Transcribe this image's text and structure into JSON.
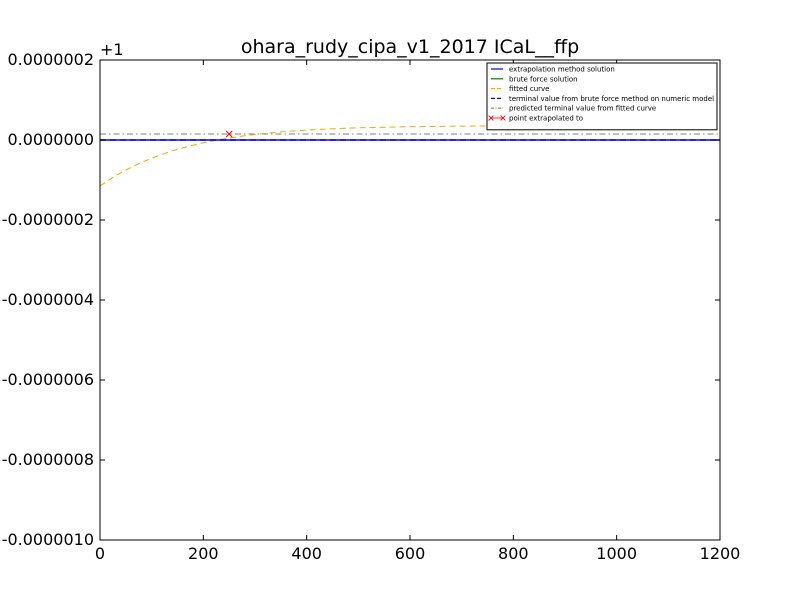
{
  "chart_data": {
    "type": "line",
    "title": "ohara_rudy_cipa_v1_2017 ICaL__ffp",
    "xlabel": "",
    "ylabel": "",
    "y_offset_label": "+1",
    "xlim": [
      0,
      1200
    ],
    "ylim": [
      -1e-06,
      2e-07
    ],
    "x_ticks": [
      0,
      200,
      400,
      600,
      800,
      1000,
      1200
    ],
    "x_tick_labels": [
      "0",
      "200",
      "400",
      "600",
      "800",
      "1000",
      "1200"
    ],
    "y_ticks": [
      2e-07,
      0.0,
      -2e-07,
      -4e-07,
      -6e-07,
      -8e-07,
      -1e-06
    ],
    "y_tick_labels": [
      "0.0000002",
      "0.0000000",
      "-0.0000002",
      "-0.0000004",
      "-0.0000006",
      "-0.0000008",
      "-0.0000010"
    ],
    "grid": false,
    "legend_position": "top-right",
    "series": [
      {
        "name": "extrapolation method solution",
        "color": "#0000ff",
        "style": "solid",
        "x": [
          0,
          1200
        ],
        "y": [
          0.0,
          0.0
        ]
      },
      {
        "name": "brute force solution",
        "color": "#008000",
        "style": "solid",
        "x": [
          0,
          1200
        ],
        "y": [
          0.0,
          0.0
        ]
      },
      {
        "name": "fitted curve",
        "color": "#ffa500",
        "style": "dashed",
        "x": [
          0,
          25,
          50,
          75,
          100,
          125,
          150,
          175,
          200,
          225,
          250,
          275,
          300,
          350,
          400,
          450,
          500,
          600,
          700,
          800,
          900,
          1000,
          1100,
          1200
        ],
        "y": [
          -1.15e-07,
          -9.35e-08,
          -7.5e-08,
          -5.92e-08,
          -4.55e-08,
          -3.36e-08,
          -2.34e-08,
          -1.46e-08,
          -7e-09,
          -5e-10,
          5e-09,
          9.7e-09,
          1.37e-08,
          2.02e-08,
          2.48e-08,
          2.81e-08,
          3.04e-08,
          3.33e-08,
          3.47e-08,
          3.55e-08,
          3.59e-08,
          3.61e-08,
          3.62e-08,
          3.63e-08
        ]
      },
      {
        "name": "terminal value from brute force method on numeric model",
        "color": "#0000ff",
        "style": "dashed",
        "x": [
          0,
          1200
        ],
        "y": [
          0.0,
          0.0
        ]
      },
      {
        "name": "predicted terminal value from fitted curve",
        "color": "#808080",
        "style": "dashdot",
        "x": [
          0,
          1200
        ],
        "y": [
          1.5e-08,
          1.5e-08
        ]
      },
      {
        "name": "point extrapolated to",
        "color": "#ff0000",
        "style": "marker-x",
        "x": [
          250
        ],
        "y": [
          1.5e-08
        ]
      }
    ]
  }
}
